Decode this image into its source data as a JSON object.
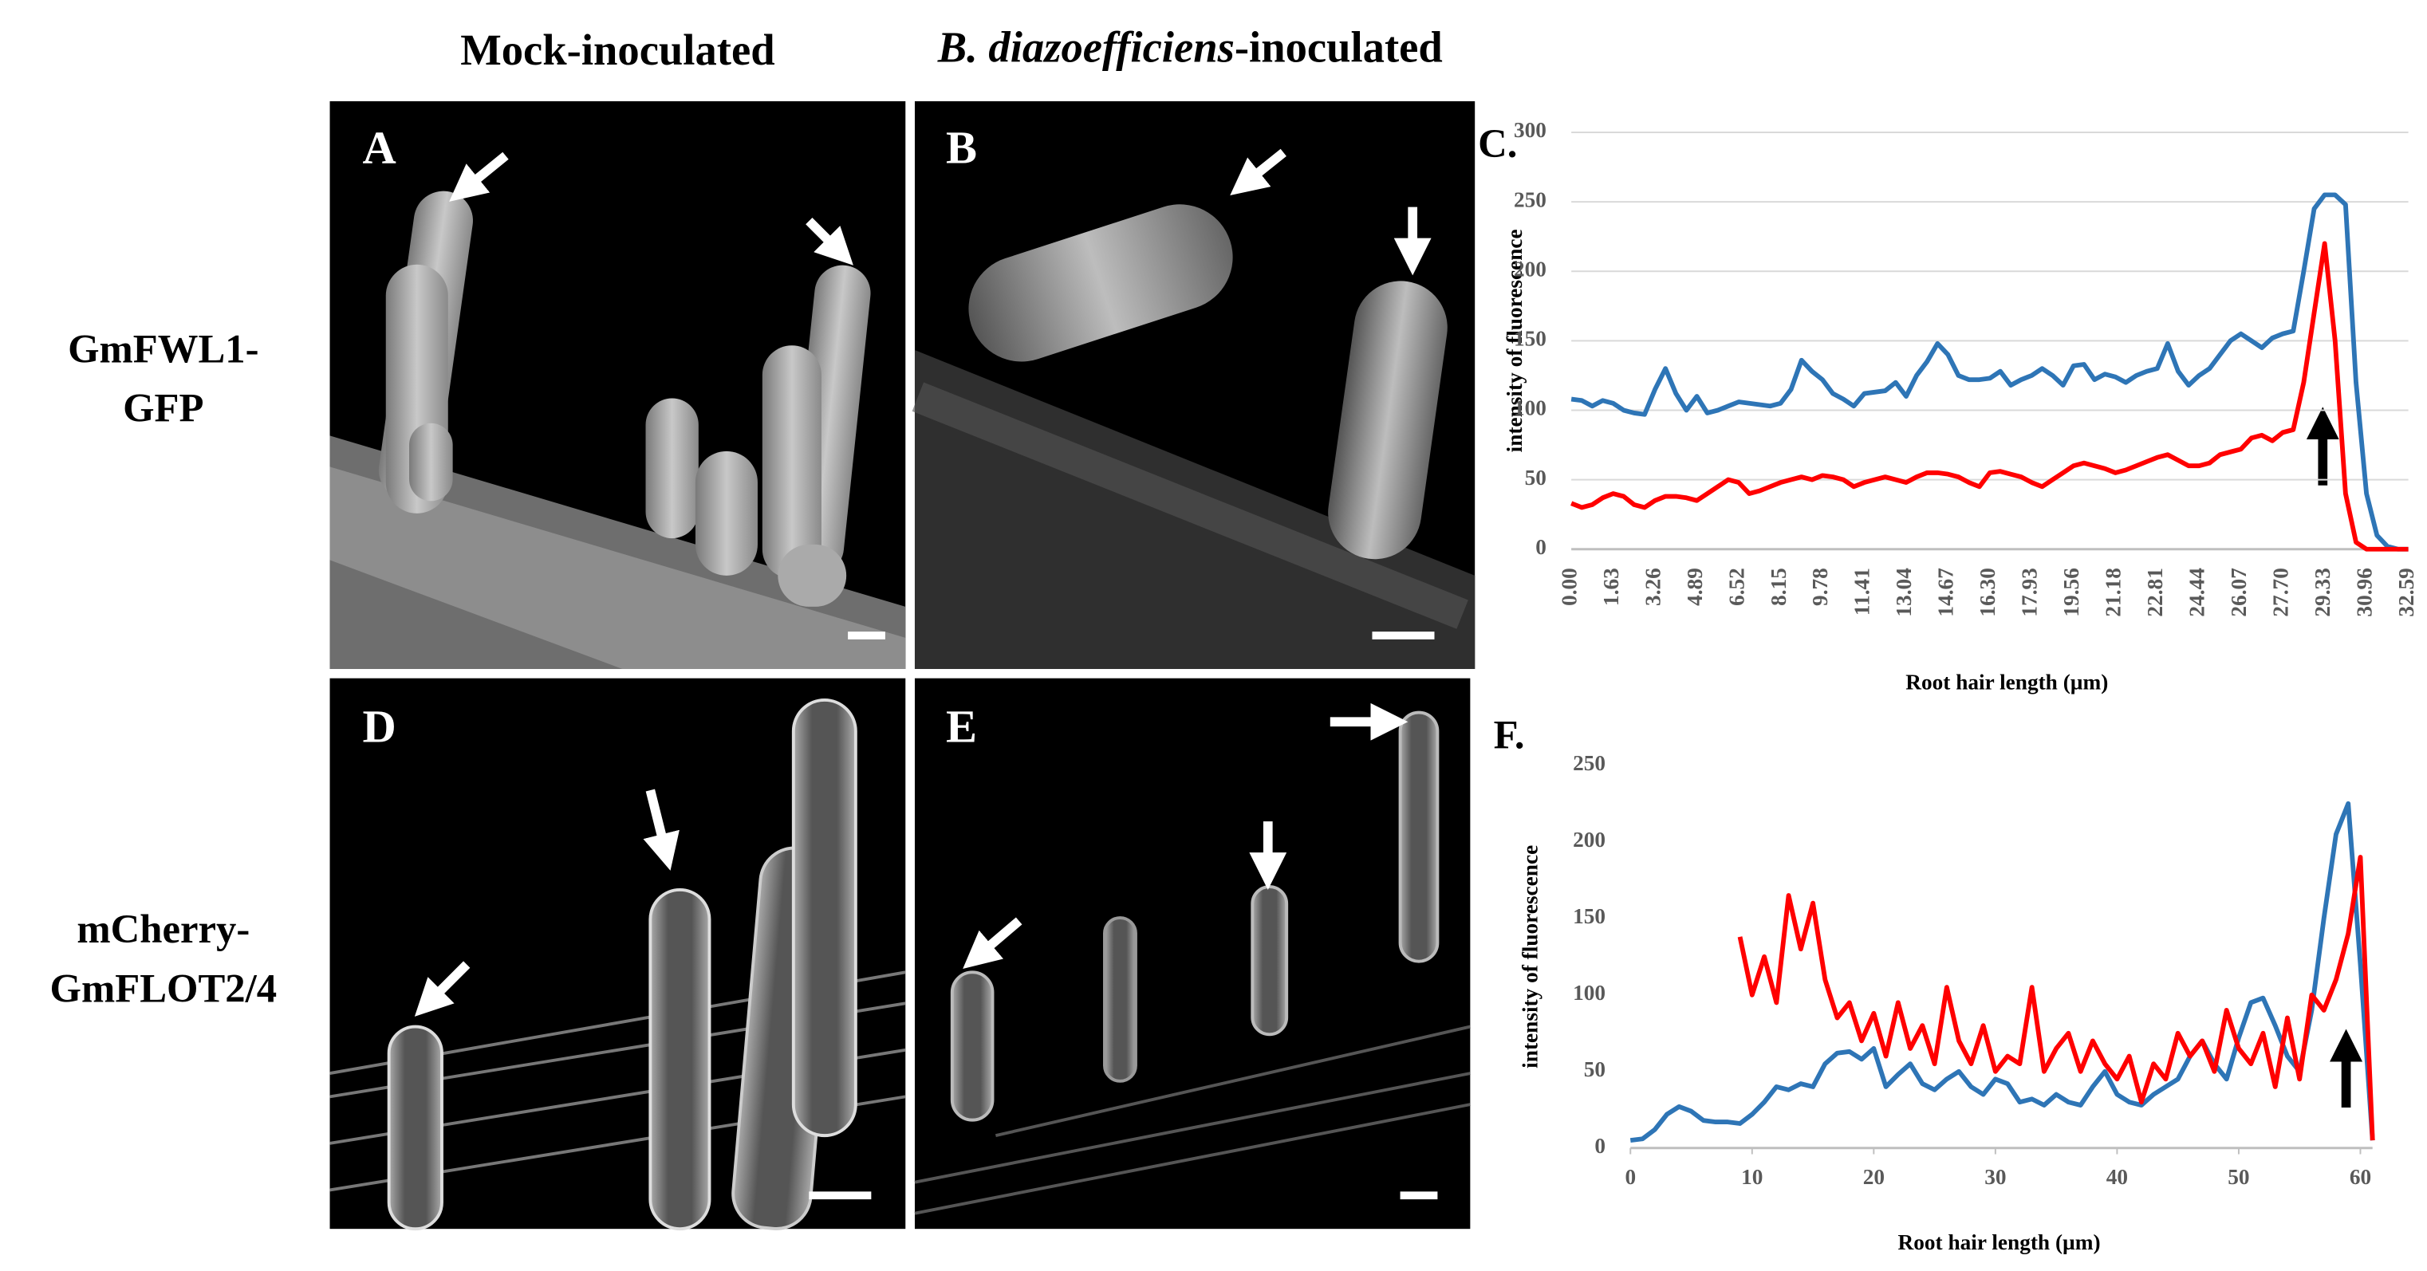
{
  "column_headers": [
    "Mock-inoculated",
    [
      "B. diazoefficiens",
      "-inoculated"
    ]
  ],
  "row_labels": [
    [
      "GmFWL1-",
      "GFP"
    ],
    [
      "mCherry-",
      "GmFLOT2/4"
    ]
  ],
  "panels": [
    "A",
    "B",
    "D",
    "E"
  ],
  "chart_data": [
    {
      "type": "line",
      "label": "C.",
      "y_label": "intensity of fluorescence",
      "x_label": "Root hair length (µm)",
      "categories": [
        "0.00",
        null,
        null,
        null,
        "1.63",
        null,
        null,
        null,
        "3.26",
        null,
        null,
        null,
        "4.89",
        null,
        null,
        null,
        "6.52",
        null,
        null,
        null,
        "8.15",
        null,
        null,
        null,
        "9.78",
        null,
        null,
        null,
        "11.41",
        null,
        null,
        null,
        "13.04",
        null,
        null,
        null,
        "14.67",
        null,
        null,
        null,
        "16.30",
        null,
        null,
        null,
        "17.93",
        null,
        null,
        null,
        "19.56",
        null,
        null,
        null,
        "21.18",
        null,
        null,
        null,
        "22.81",
        null,
        null,
        null,
        "24.44",
        null,
        null,
        null,
        "26.07",
        null,
        null,
        null,
        "27.70",
        null,
        null,
        null,
        "29.33",
        null,
        null,
        null,
        "30.96",
        null,
        null,
        null,
        "32.59"
      ],
      "ylim": [
        0,
        300
      ],
      "yticks": [
        0,
        50,
        100,
        150,
        200,
        250,
        300
      ],
      "grid": true,
      "series": [
        {
          "name": null,
          "color": "#2e75b6",
          "values": [
            108,
            107,
            103,
            107,
            105,
            100,
            98,
            97,
            115,
            130,
            112,
            100,
            110,
            98,
            100,
            103,
            106,
            105,
            104,
            103,
            105,
            115,
            136,
            128,
            122,
            112,
            108,
            103,
            112,
            113,
            114,
            120,
            110,
            125,
            135,
            148,
            140,
            125,
            122,
            122,
            123,
            128,
            118,
            122,
            125,
            130,
            125,
            118,
            132,
            133,
            122,
            126,
            124,
            120,
            125,
            128,
            130,
            148,
            128,
            118,
            125,
            130,
            140,
            150,
            155,
            150,
            145,
            152,
            155,
            157,
            200,
            245,
            255,
            255,
            248,
            120,
            40,
            10,
            2,
            0,
            0
          ]
        },
        {
          "name": null,
          "color": "#ff0000",
          "values": [
            33,
            30,
            32,
            37,
            40,
            38,
            32,
            30,
            35,
            38,
            38,
            37,
            35,
            40,
            45,
            50,
            48,
            40,
            42,
            45,
            48,
            50,
            52,
            50,
            53,
            52,
            50,
            45,
            48,
            50,
            52,
            50,
            48,
            52,
            55,
            55,
            54,
            52,
            48,
            45,
            55,
            56,
            54,
            52,
            48,
            45,
            50,
            55,
            60,
            62,
            60,
            58,
            55,
            57,
            60,
            63,
            66,
            68,
            64,
            60,
            60,
            62,
            68,
            70,
            72,
            80,
            82,
            78,
            84,
            86,
            120,
            170,
            220,
            150,
            40,
            5,
            0,
            0,
            0,
            0,
            0
          ]
        }
      ]
    },
    {
      "type": "line",
      "label": "F.",
      "y_label": "intensity of fluorescence",
      "x_label": "Root hair length (µm)",
      "x": [
        0,
        1,
        2,
        3,
        4,
        5,
        6,
        7,
        8,
        9,
        10,
        11,
        12,
        13,
        14,
        15,
        16,
        17,
        18,
        19,
        20,
        21,
        22,
        23,
        24,
        25,
        26,
        27,
        28,
        29,
        30,
        31,
        32,
        33,
        34,
        35,
        36,
        37,
        38,
        39,
        40,
        41,
        42,
        43,
        44,
        45,
        46,
        47,
        48,
        49,
        50,
        51,
        52,
        53,
        54,
        55,
        56,
        57,
        58,
        59,
        60,
        61
      ],
      "xlim": [
        0,
        61
      ],
      "xticks": [
        0,
        10,
        20,
        30,
        40,
        50,
        60
      ],
      "ylim": [
        0,
        250
      ],
      "yticks": [
        0,
        50,
        100,
        150,
        200,
        250
      ],
      "grid": false,
      "series": [
        {
          "name": null,
          "color": "#2e75b6",
          "values": [
            5,
            6,
            12,
            22,
            27,
            24,
            18,
            17,
            17,
            16,
            22,
            30,
            40,
            38,
            42,
            40,
            55,
            62,
            63,
            58,
            65,
            40,
            48,
            55,
            42,
            38,
            45,
            50,
            40,
            35,
            45,
            42,
            30,
            32,
            28,
            35,
            30,
            28,
            40,
            50,
            35,
            30,
            28,
            35,
            40,
            45,
            60,
            70,
            55,
            45,
            72,
            95,
            98,
            80,
            60,
            50,
            90,
            150,
            205,
            225,
            120,
            5
          ]
        },
        {
          "name": null,
          "color": "#ff0000",
          "values": [
            null,
            null,
            null,
            null,
            null,
            null,
            null,
            null,
            null,
            138,
            100,
            125,
            95,
            165,
            130,
            160,
            110,
            85,
            95,
            70,
            88,
            60,
            95,
            65,
            80,
            55,
            105,
            70,
            55,
            80,
            50,
            60,
            55,
            105,
            50,
            65,
            75,
            50,
            70,
            55,
            45,
            60,
            30,
            55,
            45,
            75,
            60,
            70,
            50,
            90,
            65,
            55,
            75,
            40,
            85,
            45,
            100,
            90,
            110,
            140,
            190,
            5
          ]
        }
      ]
    }
  ]
}
